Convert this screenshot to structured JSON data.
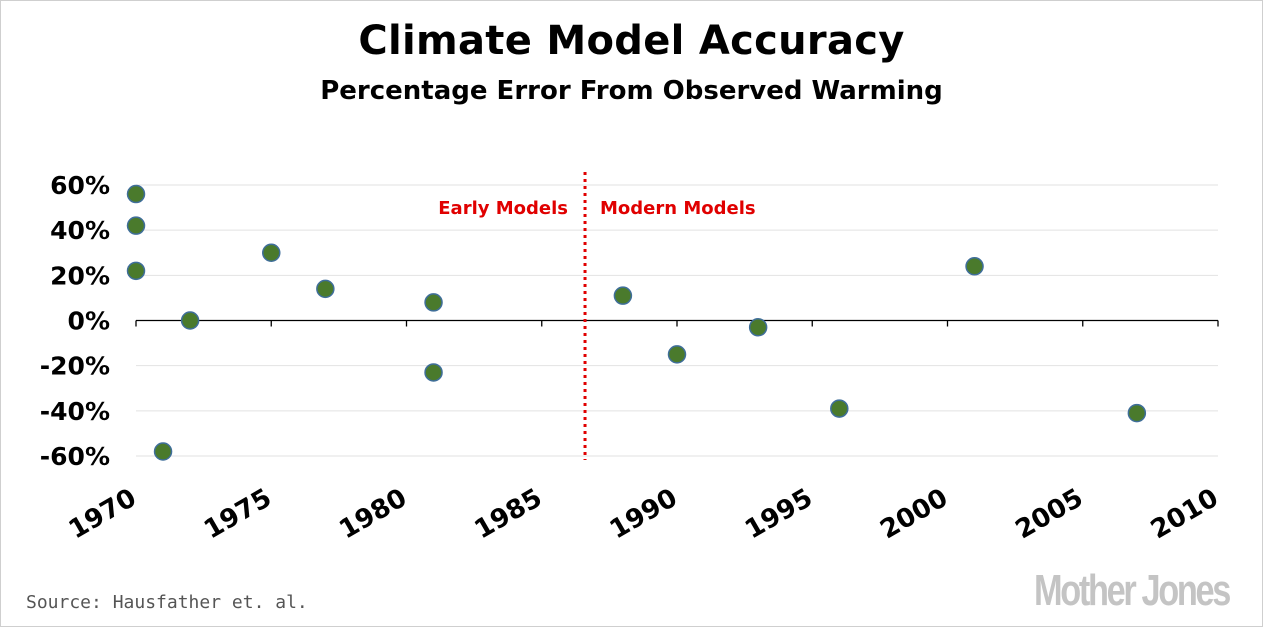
{
  "title": "Climate Model Accuracy",
  "subtitle": "Percentage Error From Observed Warming",
  "source": "Source: Hausfather et. al.",
  "logo": "Mother Jones",
  "colors": {
    "point": "#4a7a2c",
    "point_stroke": "#3f6e9a",
    "divider": "#e00000",
    "annotation": "#e00000",
    "grid": "#e2e2e2",
    "axis": "#000000"
  },
  "chart_data": {
    "type": "scatter",
    "title": "Climate Model Accuracy",
    "subtitle": "Percentage Error From Observed Warming",
    "xlabel": "",
    "ylabel": "",
    "xlim": [
      1970,
      2010
    ],
    "ylim": [
      -60,
      60
    ],
    "x_ticks": [
      "1970",
      "1975",
      "1980",
      "1985",
      "1990",
      "1995",
      "2000",
      "2005",
      "2010"
    ],
    "y_ticks": [
      "60%",
      "40%",
      "20%",
      "0%",
      "-20%",
      "-40%",
      "-60%"
    ],
    "y_tick_values": [
      60,
      40,
      20,
      0,
      -20,
      -40,
      -60
    ],
    "grid": "horizontal",
    "divider": {
      "x": 1986.6,
      "style": "dotted"
    },
    "annotations": [
      {
        "text": "Early Models",
        "side": "left"
      },
      {
        "text": "Modern Models",
        "side": "right"
      }
    ],
    "points": [
      {
        "x": 1970.0,
        "y": 56
      },
      {
        "x": 1970.0,
        "y": 42
      },
      {
        "x": 1970.0,
        "y": 22
      },
      {
        "x": 1971.0,
        "y": -58
      },
      {
        "x": 1972.0,
        "y": 0
      },
      {
        "x": 1975.0,
        "y": 30
      },
      {
        "x": 1977.0,
        "y": 14
      },
      {
        "x": 1981.0,
        "y": 8
      },
      {
        "x": 1981.0,
        "y": -23
      },
      {
        "x": 1988.0,
        "y": 11
      },
      {
        "x": 1990.0,
        "y": -15
      },
      {
        "x": 1993.0,
        "y": -3
      },
      {
        "x": 1996.0,
        "y": -39
      },
      {
        "x": 2001.0,
        "y": 24
      },
      {
        "x": 2007.0,
        "y": -41
      }
    ]
  }
}
